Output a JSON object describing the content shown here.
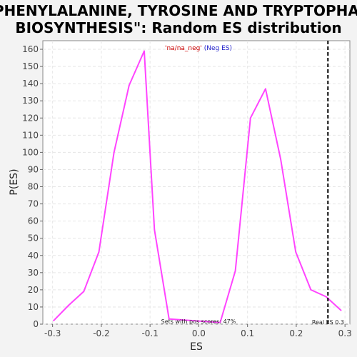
{
  "chart_data": {
    "type": "line",
    "title_line1": "\"PHENYLALANINE, TYROSINE AND TRYPTOPHAN",
    "title_line2": "BIOSYNTHESIS\": Random ES distribution",
    "xlabel": "ES",
    "ylabel": "P(ES)",
    "xlim": [
      -0.32,
      0.31
    ],
    "ylim": [
      0,
      165
    ],
    "x_ticks": [
      -0.3,
      -0.2,
      -0.1,
      0.0,
      0.1,
      0.2,
      0.3
    ],
    "x_tick_labels": [
      "-0.3",
      "-0.2",
      "-0.1",
      "0.0",
      "0.1",
      "0.2",
      "0.3"
    ],
    "y_ticks": [
      0,
      10,
      20,
      30,
      40,
      50,
      60,
      70,
      80,
      90,
      100,
      110,
      120,
      130,
      140,
      150,
      160
    ],
    "grid": true,
    "series": [
      {
        "name": "'na/na_neg' (Neg ES)",
        "color": "#ff44ff",
        "x": [
          -0.298,
          -0.267,
          -0.236,
          -0.205,
          -0.174,
          -0.143,
          -0.112,
          -0.091,
          -0.061,
          0.044,
          0.075,
          0.106,
          0.137,
          0.168,
          0.199,
          0.23,
          0.261,
          0.292
        ],
        "y": [
          2,
          11,
          19,
          42,
          100,
          139,
          159,
          55,
          3,
          1,
          31,
          120,
          137,
          96,
          42,
          20,
          16,
          8
        ]
      }
    ],
    "legend": {
      "part1": "'na/na_neg'",
      "part2": " (Neg ES)",
      "placement": "top-center"
    },
    "real_es": {
      "value": 0.265,
      "label": "Real ES 0.3",
      "line_color": "#000000"
    },
    "annotation": "Sets with pos scores: 47%"
  }
}
